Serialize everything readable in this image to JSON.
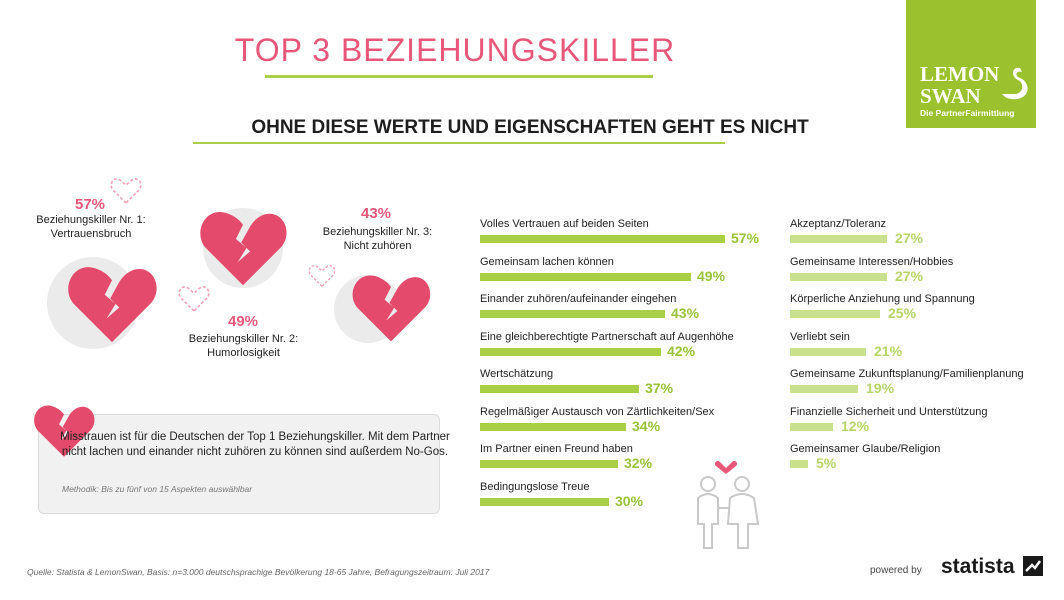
{
  "header": {
    "title": "TOP 3 BEZIEHUNGSKILLER",
    "subtitle": "OHNE DIESE WERTE UND EIGENSCHAFTEN GEHT ES NICHT"
  },
  "logo": {
    "line1": "LEMON",
    "line2": "SWAN",
    "tagline": "Die PartnerFairmittlung"
  },
  "killers": [
    {
      "pct": "57%",
      "label_line1": "Beziehungskiller Nr. 1:",
      "label_line2": "Vertrauensbruch"
    },
    {
      "pct": "49%",
      "label_line1": "Beziehungskiller Nr. 2:",
      "label_line2": "Humorlosigkeit"
    },
    {
      "pct": "43%",
      "label_line1": "Beziehungskiller Nr. 3:",
      "label_line2": "Nicht zuhören"
    }
  ],
  "info": {
    "text": "Misstrauen ist für die Deutschen der Top 1 Beziehungskiller. Mit dem Partner nicht lachen und einander nicht zuhören zu können sind außerdem No-Gos.",
    "method": "Methodik: Bis zu fünf von 15 Aspekten auswählbar"
  },
  "chart_data": {
    "type": "bar",
    "orientation": "horizontal",
    "unit": "%",
    "xlim": [
      0,
      57
    ],
    "colors": {
      "col1": "#a8cf45",
      "col2": "#c9e08f",
      "label_col1": "#99c23a",
      "label_col2": "#b6d46a"
    },
    "columns": [
      {
        "categories": [
          "Volles Vertrauen auf beiden Seiten",
          "Gemeinsam lachen können",
          "Einander zuhören/aufeinander eingehen",
          "Eine gleichberechtigte Partnerschaft auf Augenhöhe",
          "Wertschätzung",
          "Regelmäßiger Austausch von Zärtlichkeiten/Sex",
          "Im Partner einen Freund haben",
          "Bedingungslose Treue"
        ],
        "values": [
          57,
          49,
          43,
          42,
          37,
          34,
          32,
          30
        ],
        "value_labels": [
          "57%",
          "49%",
          "43%",
          "42%",
          "37%",
          "34%",
          "32%",
          "30%"
        ]
      },
      {
        "categories": [
          "Akzeptanz/Toleranz",
          "Gemeinsame Interessen/Hobbies",
          "Körperliche Anziehung und Spannung",
          "Verliebt sein",
          "Gemeinsame Zukunftsplanung/Familienplanung",
          "Finanzielle Sicherheit und Unterstützung",
          "Gemeinsamer Glaube/Religion"
        ],
        "values": [
          27,
          27,
          25,
          21,
          19,
          12,
          5
        ],
        "value_labels": [
          "27%",
          "27%",
          "25%",
          "21%",
          "19%",
          "12%",
          "5%"
        ]
      }
    ]
  },
  "footer": {
    "source": "Quelle: Statista & LemonSwan, Basis: n=3.000 deutschsprachige Bevölkerung 18-65 Jahre, Befragungszeitraum: Juli 2017",
    "powered_by": "powered by",
    "brand": "statista"
  }
}
